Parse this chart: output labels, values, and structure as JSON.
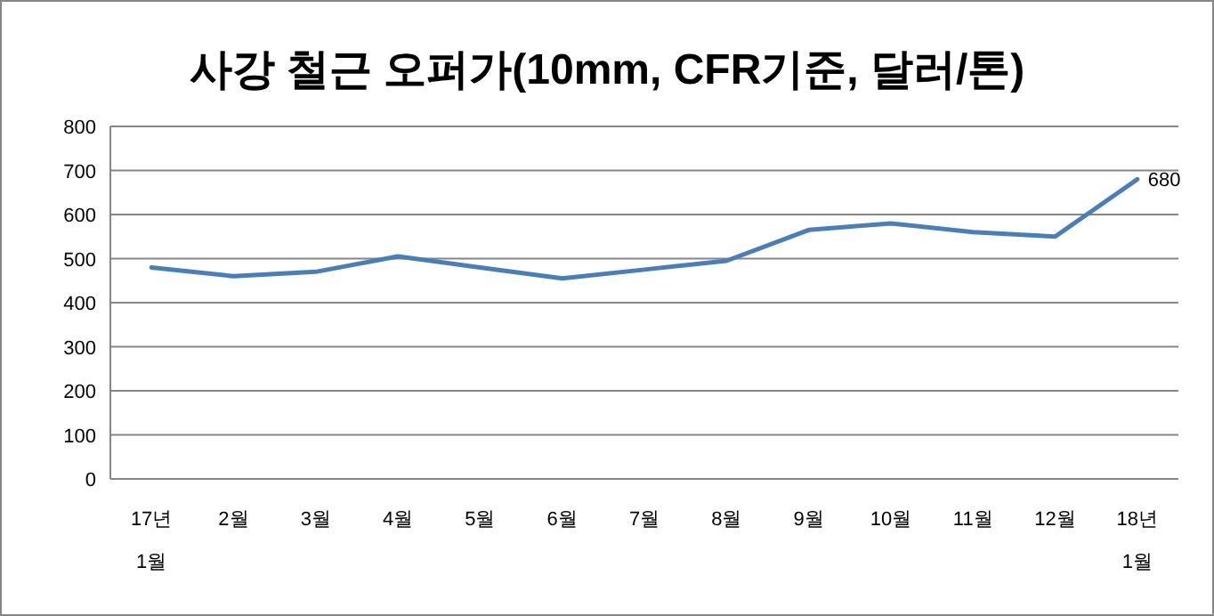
{
  "chart_data": {
    "type": "line",
    "title": "사강 철근 오퍼가(10mm, CFR기준, 달러/톤)",
    "categories": [
      "17년\n1월",
      "2월",
      "3월",
      "4월",
      "5월",
      "6월",
      "7월",
      "8월",
      "9월",
      "10월",
      "11월",
      "12월",
      "18년\n1월"
    ],
    "series": [
      {
        "color": "#4a7ebb",
        "values": [
          480,
          460,
          470,
          505,
          480,
          455,
          475,
          495,
          565,
          580,
          560,
          550,
          680
        ],
        "value_labels": [
          null,
          null,
          null,
          null,
          null,
          null,
          null,
          null,
          null,
          null,
          null,
          null,
          "680"
        ]
      }
    ],
    "ylim": [
      0,
      800
    ],
    "yticks": [
      0,
      100,
      200,
      300,
      400,
      500,
      600,
      700,
      800
    ],
    "grid": "y",
    "marker": "none",
    "line_style": "solid"
  }
}
